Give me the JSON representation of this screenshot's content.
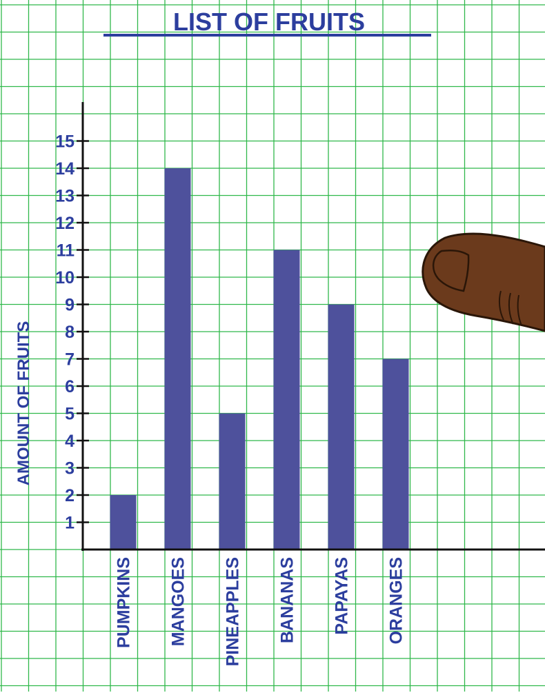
{
  "chart_data": {
    "type": "bar",
    "title": "LIST OF FRUITS",
    "xlabel": "",
    "ylabel": "AMOUNT OF FRUITS",
    "categories": [
      "PUMPKINS",
      "MANGOES",
      "PINEAPPLES",
      "BANANAS",
      "PAPAYAS",
      "ORANGES"
    ],
    "values": [
      2,
      14,
      5,
      11,
      9,
      7
    ],
    "ylim": [
      0,
      15
    ],
    "yticks": [
      1,
      2,
      3,
      4,
      5,
      6,
      7,
      8,
      9,
      10,
      11,
      12,
      13,
      14,
      15
    ],
    "grid": true,
    "legend": "none"
  },
  "colors": {
    "bar": "#4e519c",
    "text": "#2c3e9e",
    "grid": "#2fb84a",
    "axis": "#111111",
    "finger_skin": "#6b3a1c"
  },
  "decoration": {
    "icon": "pointing-finger-icon"
  }
}
